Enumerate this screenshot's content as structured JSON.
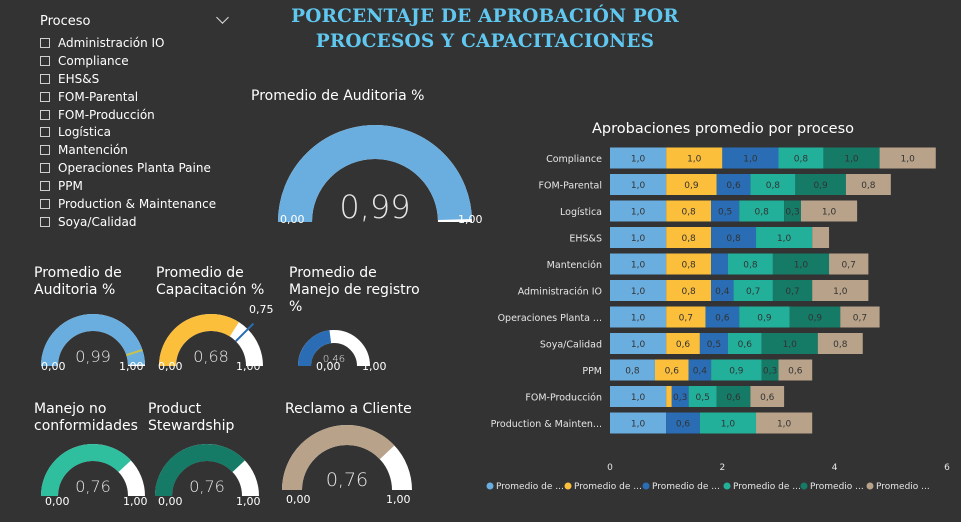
{
  "slicer": {
    "title": "Proceso",
    "items": [
      "Administración IO",
      "Compliance",
      "EHS&S",
      "FOM-Parental",
      "FOM-Producción",
      "Logística",
      "Mantención",
      "Operaciones Planta Paine",
      "PPM",
      "Production & Maintenance",
      "Soya/Calidad"
    ]
  },
  "header": {
    "title_line1": "PORCENTAJE DE APROBACIÓN POR",
    "title_line2": "PROCESOS Y CAPACITACIONES"
  },
  "colors": {
    "background": "#333333",
    "title": "#60c8f0",
    "light_blue": "#6aaee0",
    "yellow": "#fbbf3c",
    "mid_blue": "#2a6db5",
    "teal": "#22b09a",
    "dark_teal": "#157a66",
    "tan": "#b8a38a",
    "track": "#ffffff"
  },
  "gauges": {
    "big": {
      "label": "Promedio de Auditoria %",
      "value": 0.99,
      "display": "0,99",
      "min": "0,00",
      "max": "1,00",
      "color": "#6aaee0"
    },
    "small": [
      {
        "id": "auditoria",
        "label_l1": "Promedio de",
        "label_l2": "Auditoria %",
        "value": 0.99,
        "display": "0,99",
        "min": "0,00",
        "max": "1,00",
        "color": "#6aaee0",
        "target": 0.9,
        "target_label": ""
      },
      {
        "id": "capacitacion",
        "label_l1": "Promedio de",
        "label_l2": "Capacitación %",
        "value": 0.68,
        "display": "0,68",
        "min": "0,00",
        "max": "1,00",
        "color": "#fbbf3c",
        "target": 0.75,
        "target_label": "0,75"
      },
      {
        "id": "registro",
        "label_l1": "Promedio de",
        "label_l2": "Manejo de registro",
        "label_l3": "%",
        "value": 0.46,
        "display": "0,46",
        "min": "0,00",
        "max": "1,00",
        "color": "#2a6db5"
      },
      {
        "id": "conformidades",
        "label_l1": "Manejo no",
        "label_l2": "conformidades",
        "value": 0.76,
        "display": "0,76",
        "min": "0,00",
        "max": "1,00",
        "color": "#2fbf9f"
      },
      {
        "id": "stewardship",
        "label_l1": "Product",
        "label_l2": "Stewardship",
        "value": 0.76,
        "display": "0,76",
        "min": "0,00",
        "max": "1,00",
        "color": "#157a66"
      },
      {
        "id": "cliente",
        "label_l1": "Reclamo a Cliente",
        "label_l2": "",
        "value": 0.76,
        "display": "0,76",
        "min": "0,00",
        "max": "1,00",
        "color": "#b8a38a"
      }
    ]
  },
  "chart_data": {
    "type": "bar",
    "orientation": "horizontal",
    "stacked": true,
    "title": "Aprobaciones promedio por proceso",
    "categories": [
      "Compliance",
      "FOM-Parental",
      "Logística",
      "EHS&S",
      "Mantención",
      "Administración IO",
      "Operaciones Planta ...",
      "Soya/Calidad",
      "PPM",
      "FOM-Producción",
      "Production & Mainten..."
    ],
    "xlim": [
      0,
      6
    ],
    "xticks": [
      "0",
      "2",
      "4",
      "6"
    ],
    "series": [
      {
        "name": "Promedio de ...",
        "color": "#6aaee0",
        "values": [
          1.0,
          1.0,
          1.0,
          1.0,
          1.0,
          1.0,
          1.0,
          1.0,
          0.8,
          1.0,
          1.0
        ],
        "labels": [
          "1,0",
          "1,0",
          "1,0",
          "1,0",
          "1,0",
          "1,0",
          "1,0",
          "1,0",
          "0,8",
          "1,0",
          "1,0"
        ]
      },
      {
        "name": "Promedio de ...",
        "color": "#fbbf3c",
        "values": [
          1.0,
          0.9,
          0.8,
          0.8,
          0.8,
          0.8,
          0.7,
          0.6,
          0.6,
          0.1,
          0
        ],
        "labels": [
          "1,0",
          "0,9",
          "0,8",
          "0,8",
          "0,8",
          "0,8",
          "0,7",
          "0,6",
          "0,6",
          "",
          ""
        ]
      },
      {
        "name": "Promedio de ...",
        "color": "#2a6db5",
        "values": [
          1.0,
          0.6,
          0.5,
          0.8,
          0.3,
          0.4,
          0.6,
          0.5,
          0.4,
          0.3,
          0.6
        ],
        "labels": [
          "1,0",
          "0,6",
          "0,5",
          "0,8",
          "",
          "0,4",
          "0,6",
          "0,5",
          "0,4",
          "0,3",
          "0,6"
        ]
      },
      {
        "name": "Promedio de ...",
        "color": "#22b09a",
        "values": [
          0.8,
          0.8,
          0.8,
          1.0,
          0.8,
          0.7,
          0.9,
          0.6,
          0.9,
          0.5,
          1.0
        ],
        "labels": [
          "0,8",
          "0,8",
          "0,8",
          "1,0",
          "0,8",
          "0,7",
          "0,9",
          "0,6",
          "0,9",
          "0,5",
          "1,0"
        ]
      },
      {
        "name": "Promedio ...",
        "color": "#157a66",
        "values": [
          1.0,
          0.9,
          0.3,
          0,
          1.0,
          0.7,
          0.9,
          1.0,
          0.3,
          0.6,
          0
        ],
        "labels": [
          "1,0",
          "0,9",
          "0,3",
          "",
          "1,0",
          "0,7",
          "0,9",
          "1,0",
          "0,3",
          "0,6",
          ""
        ]
      },
      {
        "name": "Promedio ...",
        "color": "#b8a38a",
        "values": [
          1.0,
          0.8,
          1.0,
          0.3,
          0.7,
          1.0,
          0.7,
          0.8,
          0.6,
          0.6,
          1.0
        ],
        "labels": [
          "1,0",
          "0,8",
          "1,0",
          "",
          "0,7",
          "1,0",
          "0,7",
          "0,8",
          "0,6",
          "0,6",
          "1,0"
        ]
      }
    ],
    "legend": "bottom"
  }
}
